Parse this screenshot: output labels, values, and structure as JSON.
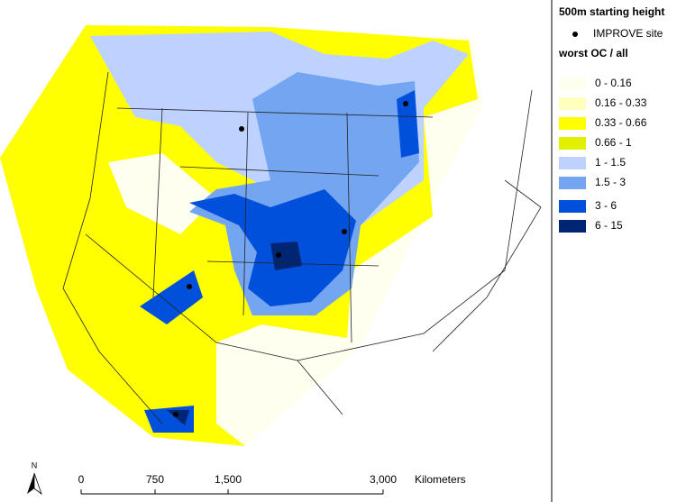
{
  "legend": {
    "title": "500m starting height",
    "site_label": "IMPROVE site",
    "class_title": "worst OC / all",
    "classes": [
      {
        "label": "0 - 0.16",
        "color": "#fffff0"
      },
      {
        "label": "0.16 - 0.33",
        "color": "#ffffbe"
      },
      {
        "label": "0.33 - 0.66",
        "color": "#ffff00"
      },
      {
        "label": "0.66 - 1",
        "color": "#e1f000"
      },
      {
        "label": "1 - 1.5",
        "color": "#bed2ff"
      },
      {
        "label": "1.5 - 3",
        "color": "#73a5f0"
      },
      {
        "label": "3 - 6",
        "color": "#0050dc"
      },
      {
        "label": "6 - 15",
        "color": "#002673"
      }
    ]
  },
  "scale_bar": {
    "ticks": [
      "0",
      "750",
      "1,500",
      "3,000"
    ],
    "unit": "Kilometers"
  },
  "north_arrow": {
    "label": "N"
  }
}
